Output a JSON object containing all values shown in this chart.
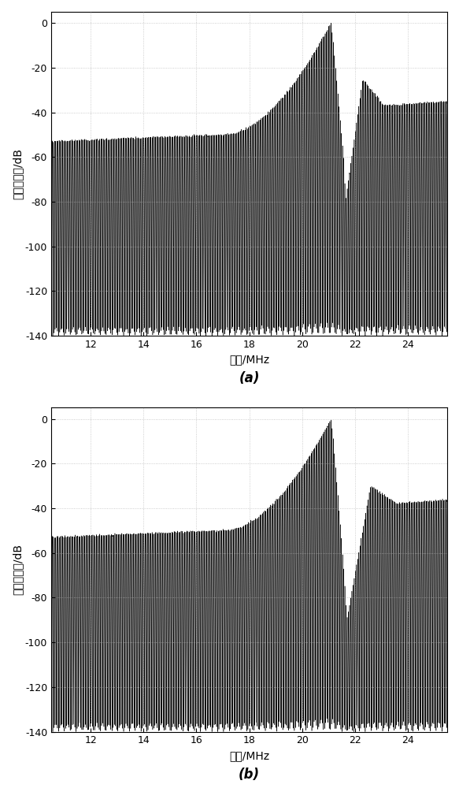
{
  "fig_width": 5.83,
  "fig_height": 10.0,
  "dpi": 100,
  "background_color": "#ffffff",
  "subplot_labels": [
    "(a)",
    "(b)"
  ],
  "xlabel": "频率/MHz",
  "ylabel": "归一化功率/dB",
  "xlim": [
    10.5,
    25.5
  ],
  "ylim": [
    -140,
    5
  ],
  "xticks": [
    12,
    14,
    16,
    18,
    20,
    22,
    24
  ],
  "yticks": [
    0,
    -20,
    -40,
    -60,
    -80,
    -100,
    -120,
    -140
  ],
  "grid_color": "#b0b0b0",
  "line_color": "#000000",
  "carrier_freq": 21.1,
  "freq_start": 10.5,
  "freq_end": 25.5,
  "num_points": 12000,
  "noise_floor": -53,
  "null_depth": -140
}
